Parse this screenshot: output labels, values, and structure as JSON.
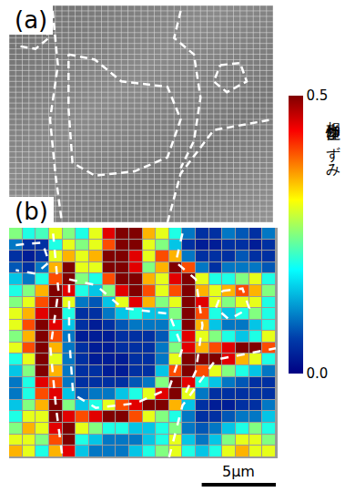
{
  "chart_data": {
    "type": "heatmap",
    "panel_labels": [
      "(a)",
      "(b)"
    ],
    "color": "Jet",
    "tick_labels": false,
    "cell_size": 0.9,
    "scale_bar": {
      "length": 5,
      "label": "5μm"
    },
    "colorbar": {
      "title": "相当塑性ひずみ",
      "range": [
        0,
        0.5
      ],
      "ticks": [
        {
          "value": 0,
          "label": "0.0"
        },
        {
          "value": 0.5,
          "label": "0.5"
        }
      ]
    },
    "z": [
      [
        0.25,
        0.2,
        0.22,
        0.3,
        0.25,
        0.2,
        0.3,
        0.45,
        0.5,
        0.5,
        0.35,
        0.3,
        0.2,
        0.1,
        0.05,
        0.05,
        0.1,
        0.08,
        0.05,
        0.1
      ],
      [
        0.1,
        0.05,
        0.05,
        0.2,
        0.3,
        0.25,
        0.3,
        0.4,
        0.5,
        0.5,
        0.3,
        0.25,
        0.15,
        0.05,
        0.03,
        0.03,
        0.05,
        0.05,
        0.03,
        0.05
      ],
      [
        0.05,
        0.03,
        0.05,
        0.3,
        0.35,
        0.3,
        0.35,
        0.5,
        0.5,
        0.45,
        0.3,
        0.4,
        0.35,
        0.1,
        0.05,
        0.05,
        0.05,
        0.08,
        0.05,
        0.05
      ],
      [
        0.08,
        0.05,
        0.1,
        0.35,
        0.5,
        0.3,
        0.3,
        0.5,
        0.5,
        0.45,
        0.25,
        0.35,
        0.5,
        0.4,
        0.1,
        0.05,
        0.1,
        0.1,
        0.1,
        0.08
      ],
      [
        0.15,
        0.1,
        0.2,
        0.4,
        0.5,
        0.25,
        0.2,
        0.4,
        0.5,
        0.5,
        0.35,
        0.3,
        0.45,
        0.5,
        0.3,
        0.2,
        0.2,
        0.25,
        0.3,
        0.2
      ],
      [
        0.2,
        0.25,
        0.35,
        0.5,
        0.45,
        0.2,
        0.15,
        0.25,
        0.45,
        0.5,
        0.4,
        0.3,
        0.4,
        0.5,
        0.35,
        0.3,
        0.35,
        0.4,
        0.35,
        0.25
      ],
      [
        0.25,
        0.3,
        0.4,
        0.5,
        0.3,
        0.1,
        0.08,
        0.15,
        0.3,
        0.45,
        0.35,
        0.25,
        0.3,
        0.5,
        0.45,
        0.3,
        0.25,
        0.3,
        0.3,
        0.2
      ],
      [
        0.3,
        0.35,
        0.45,
        0.5,
        0.2,
        0.05,
        0.05,
        0.1,
        0.15,
        0.2,
        0.15,
        0.15,
        0.25,
        0.5,
        0.4,
        0.2,
        0.15,
        0.2,
        0.25,
        0.2
      ],
      [
        0.3,
        0.4,
        0.5,
        0.45,
        0.15,
        0.05,
        0.03,
        0.05,
        0.08,
        0.1,
        0.1,
        0.1,
        0.2,
        0.5,
        0.35,
        0.15,
        0.1,
        0.1,
        0.15,
        0.2
      ],
      [
        0.25,
        0.35,
        0.5,
        0.4,
        0.1,
        0.03,
        0.03,
        0.03,
        0.05,
        0.05,
        0.05,
        0.08,
        0.2,
        0.45,
        0.3,
        0.25,
        0.2,
        0.15,
        0.2,
        0.3
      ],
      [
        0.3,
        0.4,
        0.5,
        0.35,
        0.1,
        0.05,
        0.03,
        0.03,
        0.05,
        0.05,
        0.05,
        0.1,
        0.25,
        0.45,
        0.35,
        0.4,
        0.45,
        0.5,
        0.5,
        0.4
      ],
      [
        0.2,
        0.3,
        0.5,
        0.3,
        0.1,
        0.05,
        0.03,
        0.03,
        0.03,
        0.05,
        0.05,
        0.1,
        0.3,
        0.5,
        0.5,
        0.5,
        0.45,
        0.35,
        0.3,
        0.2
      ],
      [
        0.15,
        0.25,
        0.5,
        0.35,
        0.1,
        0.05,
        0.05,
        0.03,
        0.03,
        0.05,
        0.05,
        0.15,
        0.4,
        0.5,
        0.4,
        0.3,
        0.25,
        0.2,
        0.15,
        0.1
      ],
      [
        0.1,
        0.2,
        0.45,
        0.4,
        0.1,
        0.05,
        0.05,
        0.05,
        0.05,
        0.08,
        0.1,
        0.25,
        0.5,
        0.45,
        0.2,
        0.15,
        0.1,
        0.08,
        0.05,
        0.05
      ],
      [
        0.1,
        0.2,
        0.4,
        0.45,
        0.15,
        0.08,
        0.1,
        0.1,
        0.15,
        0.2,
        0.3,
        0.45,
        0.5,
        0.3,
        0.1,
        0.05,
        0.05,
        0.05,
        0.05,
        0.05
      ],
      [
        0.15,
        0.25,
        0.35,
        0.5,
        0.25,
        0.15,
        0.2,
        0.3,
        0.4,
        0.45,
        0.5,
        0.5,
        0.35,
        0.15,
        0.05,
        0.03,
        0.03,
        0.05,
        0.05,
        0.1
      ],
      [
        0.2,
        0.3,
        0.3,
        0.5,
        0.45,
        0.4,
        0.45,
        0.5,
        0.5,
        0.4,
        0.3,
        0.25,
        0.2,
        0.1,
        0.05,
        0.05,
        0.08,
        0.1,
        0.1,
        0.15
      ],
      [
        0.25,
        0.35,
        0.3,
        0.45,
        0.5,
        0.3,
        0.25,
        0.2,
        0.2,
        0.15,
        0.15,
        0.2,
        0.25,
        0.1,
        0.08,
        0.1,
        0.15,
        0.2,
        0.25,
        0.2
      ],
      [
        0.3,
        0.3,
        0.25,
        0.4,
        0.5,
        0.2,
        0.15,
        0.1,
        0.1,
        0.1,
        0.15,
        0.2,
        0.3,
        0.15,
        0.1,
        0.15,
        0.25,
        0.3,
        0.3,
        0.25
      ],
      [
        0.35,
        0.3,
        0.2,
        0.35,
        0.45,
        0.15,
        0.1,
        0.1,
        0.1,
        0.15,
        0.2,
        0.25,
        0.3,
        0.2,
        0.15,
        0.2,
        0.3,
        0.35,
        0.3,
        0.3
      ]
    ],
    "grain_boundaries": [
      [
        [
          4,
          4
        ],
        [
          6,
          4.5
        ],
        [
          8,
          6.5
        ],
        [
          11.5,
          7
        ],
        [
          12.5,
          10
        ],
        [
          11.5,
          13.5
        ],
        [
          9,
          14.8
        ],
        [
          6,
          15.2
        ],
        [
          4.3,
          14
        ],
        [
          4,
          9
        ],
        [
          4,
          4
        ]
      ],
      [
        [
          11.5,
          19.5
        ],
        [
          12.5,
          15
        ],
        [
          15,
          11
        ],
        [
          19.5,
          10
        ]
      ],
      [
        [
          12.5,
          0
        ],
        [
          12,
          2.5
        ],
        [
          13.5,
          4
        ],
        [
          14,
          8
        ],
        [
          13.5,
          12
        ],
        [
          12.5,
          14.5
        ]
      ],
      [
        [
          0,
          1
        ],
        [
          2,
          0.8
        ],
        [
          2.5,
          2.5
        ],
        [
          1.5,
          3.5
        ],
        [
          0,
          3.2
        ]
      ],
      [
        [
          2.8,
          0
        ],
        [
          3.2,
          5
        ],
        [
          2.6,
          10
        ],
        [
          3,
          15
        ],
        [
          3.5,
          19.5
        ]
      ],
      [
        [
          15.5,
          5
        ],
        [
          17,
          4.8
        ],
        [
          17.5,
          6.5
        ],
        [
          16,
          7.5
        ],
        [
          15,
          6.5
        ],
        [
          15.5,
          5
        ]
      ]
    ]
  }
}
